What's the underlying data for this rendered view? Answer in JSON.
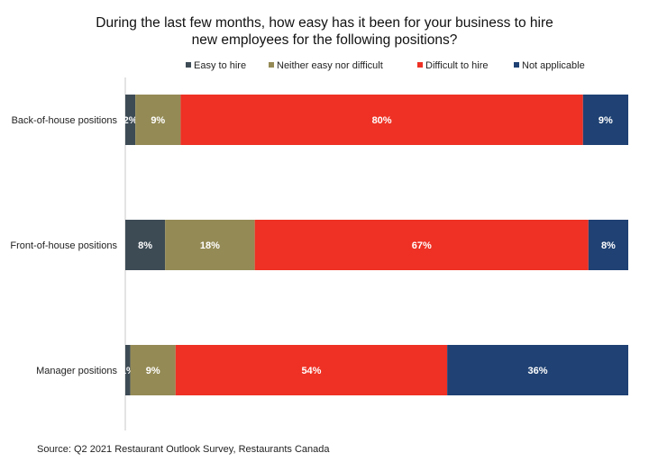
{
  "chart_data": {
    "type": "bar",
    "orientation": "horizontal",
    "stacked": true,
    "normalized_percent": true,
    "title_lines": [
      "During the last few months, how easy has it been for your business to hire",
      "new employees for the following positions?"
    ],
    "categories": [
      "Back-of-house positions",
      "Front-of-house positions",
      "Manager positions"
    ],
    "series": [
      {
        "name": "Easy to hire",
        "color": "#3d4b55",
        "values": [
          2,
          8,
          1
        ]
      },
      {
        "name": "Neither easy nor difficult",
        "color": "#948a55",
        "values": [
          9,
          18,
          9
        ]
      },
      {
        "name": "Difficult to hire",
        "color": "#ee3124",
        "values": [
          80,
          67,
          54
        ]
      },
      {
        "name": "Not applicable",
        "color": "#1f4173",
        "values": [
          9,
          8,
          36
        ]
      }
    ],
    "value_suffix": "%",
    "legend_position": "top",
    "grid": false
  },
  "source": "Source: Q2 2021 Restaurant Outlook Survey, Restaurants Canada"
}
